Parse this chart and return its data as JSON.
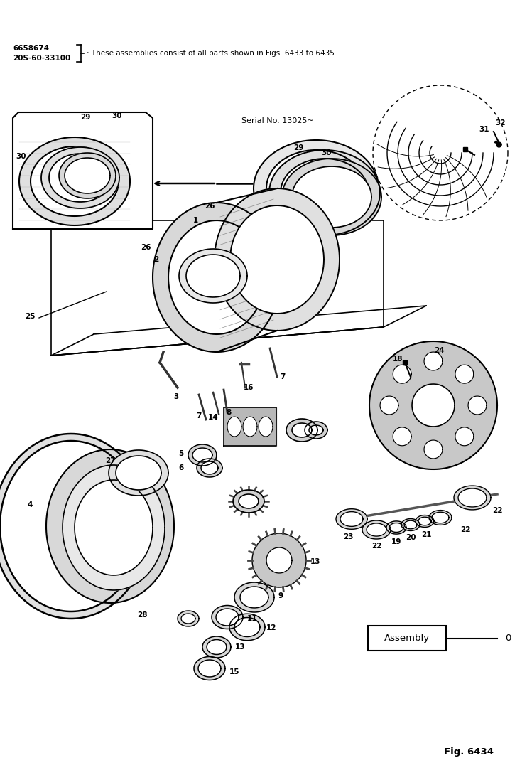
{
  "background_color": "#ffffff",
  "header_text_line1": "6658674",
  "header_text_line2": "20S-60-33100",
  "header_note": ": These assemblies consist of all parts shown in Figs. 6433 to 6435.",
  "serial_no_text": "Serial No. 13025~",
  "fig_label": "Fig. 6434",
  "assembly_label": "Assembly",
  "assembly_number": "0",
  "figsize": [
    7.49,
    10.97
  ],
  "dpi": 100
}
